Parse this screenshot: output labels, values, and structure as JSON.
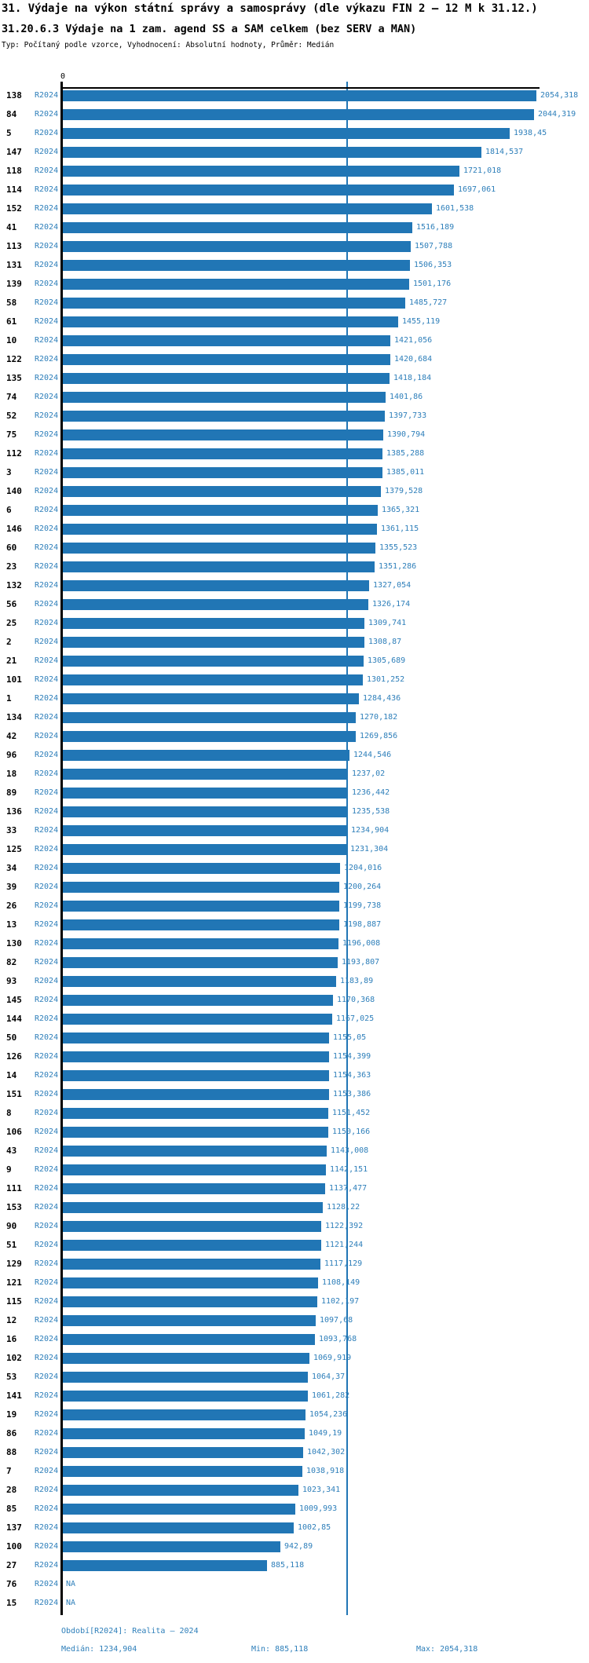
{
  "title": "31. Výdaje na výkon státní správy a samosprávy (dle výkazu FIN 2 – 12 M k 31.12.)",
  "subtitle": "31.20.6.3 Výdaje na 1 zam. agend SS a SAM celkem (bez SERV a MAN)",
  "meta_line": "Typ: Počítaný podle vzorce, Vyhodnocení: Absolutní hodnoty, Průměr: Medián",
  "colors": {
    "bar": "#2176b5",
    "label_blue": "#2e7fba",
    "axis": "#000000"
  },
  "chart_data": {
    "type": "bar",
    "orientation": "horizontal",
    "series_label": "R2024",
    "axis_zero_label": "0",
    "na_label": "NA",
    "xlim": [
      0,
      2054.318
    ],
    "median_value": 1234.904,
    "min_value": 885.118,
    "max_value": 2054.318,
    "grid": "median-line-only",
    "rows": [
      {
        "id": "138",
        "value": 2054.318,
        "label": "2054,318"
      },
      {
        "id": "84",
        "value": 2044.319,
        "label": "2044,319"
      },
      {
        "id": "5",
        "value": 1938.45,
        "label": "1938,45"
      },
      {
        "id": "147",
        "value": 1814.537,
        "label": "1814,537"
      },
      {
        "id": "118",
        "value": 1721.018,
        "label": "1721,018"
      },
      {
        "id": "114",
        "value": 1697.061,
        "label": "1697,061"
      },
      {
        "id": "152",
        "value": 1601.538,
        "label": "1601,538"
      },
      {
        "id": "41",
        "value": 1516.189,
        "label": "1516,189"
      },
      {
        "id": "113",
        "value": 1507.788,
        "label": "1507,788"
      },
      {
        "id": "131",
        "value": 1506.353,
        "label": "1506,353"
      },
      {
        "id": "139",
        "value": 1501.176,
        "label": "1501,176"
      },
      {
        "id": "58",
        "value": 1485.727,
        "label": "1485,727"
      },
      {
        "id": "61",
        "value": 1455.119,
        "label": "1455,119"
      },
      {
        "id": "10",
        "value": 1421.056,
        "label": "1421,056"
      },
      {
        "id": "122",
        "value": 1420.684,
        "label": "1420,684"
      },
      {
        "id": "135",
        "value": 1418.184,
        "label": "1418,184"
      },
      {
        "id": "74",
        "value": 1401.86,
        "label": "1401,86"
      },
      {
        "id": "52",
        "value": 1397.733,
        "label": "1397,733"
      },
      {
        "id": "75",
        "value": 1390.794,
        "label": "1390,794"
      },
      {
        "id": "112",
        "value": 1385.288,
        "label": "1385,288"
      },
      {
        "id": "3",
        "value": 1385.011,
        "label": "1385,011"
      },
      {
        "id": "140",
        "value": 1379.528,
        "label": "1379,528"
      },
      {
        "id": "6",
        "value": 1365.321,
        "label": "1365,321"
      },
      {
        "id": "146",
        "value": 1361.115,
        "label": "1361,115"
      },
      {
        "id": "60",
        "value": 1355.523,
        "label": "1355,523"
      },
      {
        "id": "23",
        "value": 1351.286,
        "label": "1351,286"
      },
      {
        "id": "132",
        "value": 1327.054,
        "label": "1327,054"
      },
      {
        "id": "56",
        "value": 1326.174,
        "label": "1326,174"
      },
      {
        "id": "25",
        "value": 1309.741,
        "label": "1309,741"
      },
      {
        "id": "2",
        "value": 1308.87,
        "label": "1308,87"
      },
      {
        "id": "21",
        "value": 1305.689,
        "label": "1305,689"
      },
      {
        "id": "101",
        "value": 1301.252,
        "label": "1301,252"
      },
      {
        "id": "1",
        "value": 1284.436,
        "label": "1284,436"
      },
      {
        "id": "134",
        "value": 1270.182,
        "label": "1270,182"
      },
      {
        "id": "42",
        "value": 1269.856,
        "label": "1269,856"
      },
      {
        "id": "96",
        "value": 1244.546,
        "label": "1244,546"
      },
      {
        "id": "18",
        "value": 1237.02,
        "label": "1237,02"
      },
      {
        "id": "89",
        "value": 1236.442,
        "label": "1236,442"
      },
      {
        "id": "136",
        "value": 1235.538,
        "label": "1235,538"
      },
      {
        "id": "33",
        "value": 1234.904,
        "label": "1234,904"
      },
      {
        "id": "125",
        "value": 1231.304,
        "label": "1231,304"
      },
      {
        "id": "34",
        "value": 1204.016,
        "label": "1204,016"
      },
      {
        "id": "39",
        "value": 1200.264,
        "label": "1200,264"
      },
      {
        "id": "26",
        "value": 1199.738,
        "label": "1199,738"
      },
      {
        "id": "13",
        "value": 1198.887,
        "label": "1198,887"
      },
      {
        "id": "130",
        "value": 1196.008,
        "label": "1196,008"
      },
      {
        "id": "82",
        "value": 1193.807,
        "label": "1193,807"
      },
      {
        "id": "93",
        "value": 1183.89,
        "label": "1183,89"
      },
      {
        "id": "145",
        "value": 1170.368,
        "label": "1170,368"
      },
      {
        "id": "144",
        "value": 1167.025,
        "label": "1167,025"
      },
      {
        "id": "50",
        "value": 1155.05,
        "label": "1155,05"
      },
      {
        "id": "126",
        "value": 1154.399,
        "label": "1154,399"
      },
      {
        "id": "14",
        "value": 1154.363,
        "label": "1154,363"
      },
      {
        "id": "151",
        "value": 1153.386,
        "label": "1153,386"
      },
      {
        "id": "8",
        "value": 1151.452,
        "label": "1151,452"
      },
      {
        "id": "106",
        "value": 1150.166,
        "label": "1150,166"
      },
      {
        "id": "43",
        "value": 1143.008,
        "label": "1143,008"
      },
      {
        "id": "9",
        "value": 1142.151,
        "label": "1142,151"
      },
      {
        "id": "111",
        "value": 1137.477,
        "label": "1137,477"
      },
      {
        "id": "153",
        "value": 1128.22,
        "label": "1128,22"
      },
      {
        "id": "90",
        "value": 1122.392,
        "label": "1122,392"
      },
      {
        "id": "51",
        "value": 1121.244,
        "label": "1121,244"
      },
      {
        "id": "129",
        "value": 1117.129,
        "label": "1117,129"
      },
      {
        "id": "121",
        "value": 1108.149,
        "label": "1108,149"
      },
      {
        "id": "115",
        "value": 1102.197,
        "label": "1102,197"
      },
      {
        "id": "12",
        "value": 1097.68,
        "label": "1097,68"
      },
      {
        "id": "16",
        "value": 1093.768,
        "label": "1093,768"
      },
      {
        "id": "102",
        "value": 1069.919,
        "label": "1069,919"
      },
      {
        "id": "53",
        "value": 1064.37,
        "label": "1064,37"
      },
      {
        "id": "141",
        "value": 1061.282,
        "label": "1061,282"
      },
      {
        "id": "19",
        "value": 1054.236,
        "label": "1054,236"
      },
      {
        "id": "86",
        "value": 1049.19,
        "label": "1049,19"
      },
      {
        "id": "88",
        "value": 1042.302,
        "label": "1042,302"
      },
      {
        "id": "7",
        "value": 1038.918,
        "label": "1038,918"
      },
      {
        "id": "28",
        "value": 1023.341,
        "label": "1023,341"
      },
      {
        "id": "85",
        "value": 1009.993,
        "label": "1009,993"
      },
      {
        "id": "137",
        "value": 1002.85,
        "label": "1002,85"
      },
      {
        "id": "100",
        "value": 942.89,
        "label": "942,89"
      },
      {
        "id": "27",
        "value": 885.118,
        "label": "885,118"
      },
      {
        "id": "76",
        "value": null,
        "label": "NA"
      },
      {
        "id": "15",
        "value": null,
        "label": "NA"
      }
    ]
  },
  "footer": {
    "period": "Období[R2024]: Realita – 2024",
    "median": "Medián: 1234,904",
    "min": "Min: 885,118",
    "max": "Max: 2054,318"
  }
}
